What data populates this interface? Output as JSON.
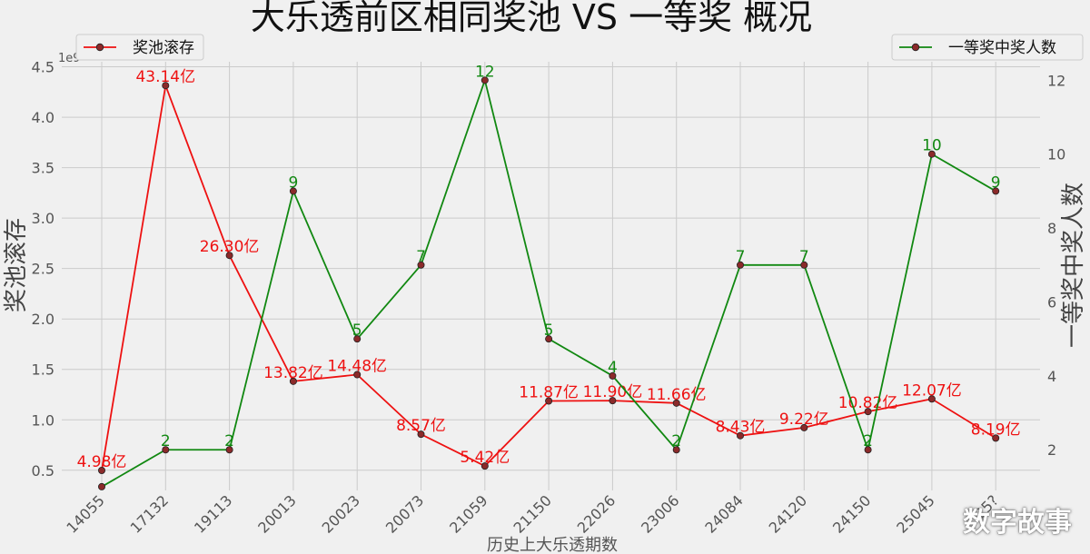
{
  "chart_data": {
    "type": "line",
    "title": "大乐透前区相同奖池 VS 一等奖 概况",
    "xlabel": "历史上大乐透期数",
    "ylabel_left": "奖池滚存",
    "ylabel_right": "一等奖中奖人数",
    "left_exponent_label": "1e9",
    "categories": [
      "14055",
      "17132",
      "19113",
      "20013",
      "20023",
      "20073",
      "21059",
      "21150",
      "22026",
      "23006",
      "24084",
      "24120",
      "24150",
      "25045",
      "25?"
    ],
    "y_left_ticks": [
      "0.5",
      "1.0",
      "1.5",
      "2.0",
      "2.5",
      "3.0",
      "3.5",
      "4.0",
      "4.5"
    ],
    "y_right_ticks": [
      "2",
      "4",
      "6",
      "8",
      "10",
      "12"
    ],
    "ylim_left": [
      0.3,
      4.55
    ],
    "ylim_right": [
      0.9,
      12.5
    ],
    "grid": true,
    "series": [
      {
        "name": "奖池滚存",
        "axis": "left",
        "color": "#ee1111",
        "values": [
          0.498,
          4.314,
          2.63,
          1.382,
          1.448,
          0.857,
          0.542,
          1.187,
          1.19,
          1.166,
          0.843,
          0.922,
          1.082,
          1.207,
          0.819
        ],
        "labels": [
          "4.98亿",
          "43.14亿",
          "26.30亿",
          "13.82亿",
          "14.48亿",
          "8.57亿",
          "5.42亿",
          "11.87亿",
          "11.90亿",
          "11.66亿",
          "8.43亿",
          "9.22亿",
          "10.82亿",
          "12.07亿",
          "8.19亿"
        ]
      },
      {
        "name": "一等奖中奖人数",
        "axis": "right",
        "color": "#118811",
        "values": [
          1,
          2,
          2,
          9,
          5,
          7,
          12,
          5,
          4,
          2,
          7,
          7,
          2,
          10,
          9
        ],
        "labels": [
          "",
          "2",
          "2",
          "9",
          "5",
          "7",
          "12",
          "5",
          "4",
          "2",
          "7",
          "7",
          "2",
          "10",
          "9"
        ]
      }
    ],
    "legend_left": "奖池滚存",
    "legend_right": "一等奖中奖人数",
    "marker_color": "#8b2a2a"
  },
  "watermark": "数字故事"
}
